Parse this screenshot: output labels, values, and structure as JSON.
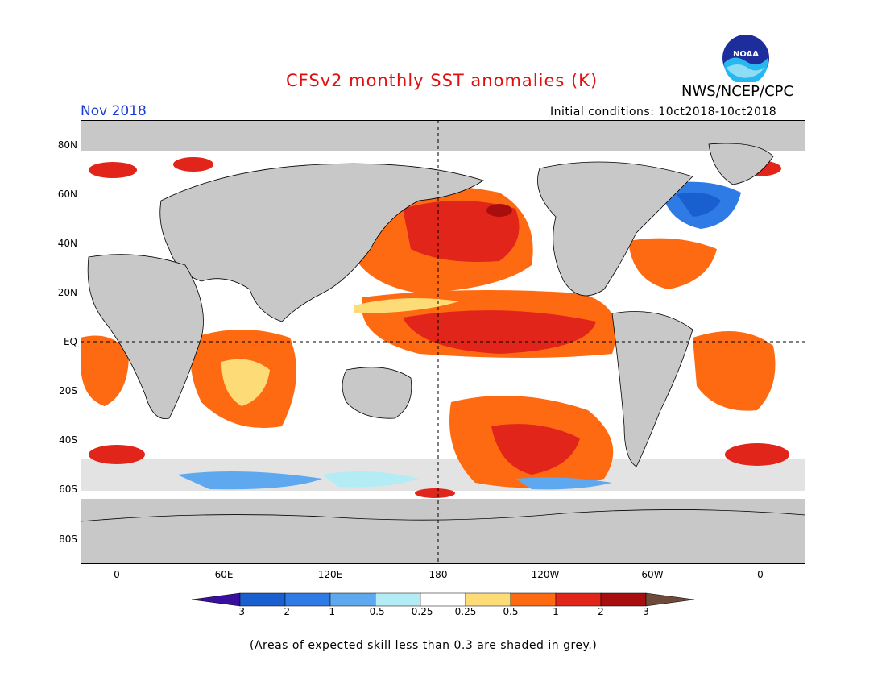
{
  "header": {
    "title": "CFSv2 monthly SST anomalies (K)",
    "month": "Nov 2018",
    "initial_conditions": "Initial conditions: 10ct2018-10ct2018",
    "agency": "NWS/NCEP/CPC",
    "logo_text": "NOAA"
  },
  "map": {
    "lat_labels": [
      "80N",
      "60N",
      "40N",
      "20N",
      "EQ",
      "20S",
      "40S",
      "60S",
      "80S"
    ],
    "lon_labels": [
      "0",
      "60E",
      "120E",
      "180",
      "120W",
      "60W",
      "0"
    ],
    "projection": "cylindrical equidistant, 20W to 20W",
    "reference_lines": [
      "equator dashed",
      "180 meridian dashed"
    ]
  },
  "colorbar": {
    "labels": [
      "-3",
      "-2",
      "-1",
      "-0.5",
      "-0.25",
      "0.25",
      "0.5",
      "1",
      "2",
      "3"
    ],
    "colors": [
      "#3a0f9e",
      "#1a5fd0",
      "#2f7be6",
      "#5ea8f0",
      "#b3ecf5",
      "#ffffff",
      "#fddc78",
      "#fe6a12",
      "#e2251a",
      "#a80e0e",
      "#6e4a3a"
    ],
    "skill_grey": "#c8c8c8"
  },
  "footnote": "(Areas of expected skill less than 0.3 are shaded in grey.)"
}
